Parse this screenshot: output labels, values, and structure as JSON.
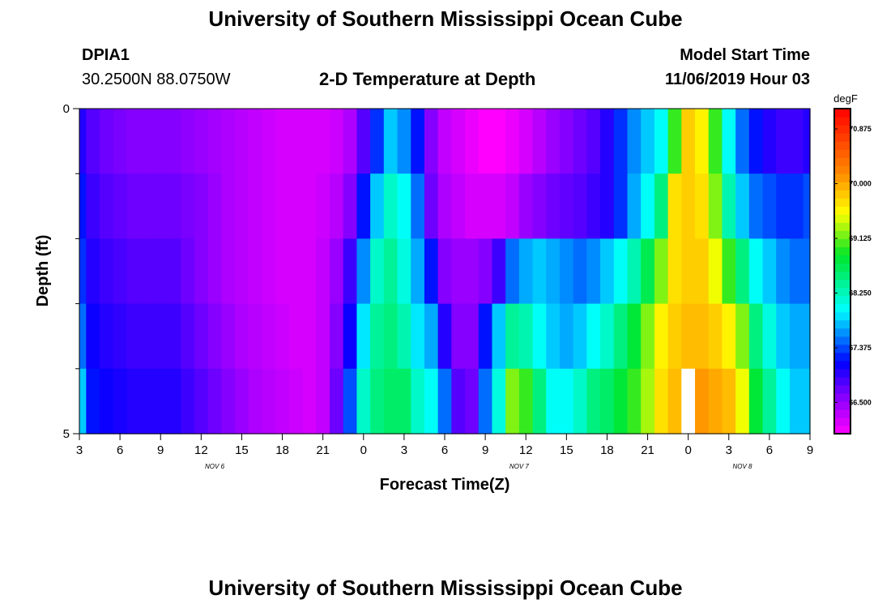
{
  "header": {
    "title": "University of Southern Mississippi Ocean Cube",
    "station": "DPIA1",
    "location": "30.2500N 88.0750W",
    "subtitle": "2-D Temperature at Depth",
    "model_label": "Model Start Time",
    "model_time": "11/06/2019 Hour 03"
  },
  "footer": {
    "title": "University of Southern Mississippi Ocean Cube"
  },
  "chart_data": {
    "type": "heatmap",
    "title": "2-D Temperature at Depth",
    "xlabel": "Forecast Time(Z)",
    "ylabel": "Depth (ft)",
    "x_start_hour": 3,
    "x_end_hour": 57,
    "x_ticks": [
      {
        "hour": 3,
        "label": "3"
      },
      {
        "hour": 6,
        "label": "6"
      },
      {
        "hour": 9,
        "label": "9"
      },
      {
        "hour": 12,
        "label": "12"
      },
      {
        "hour": 15,
        "label": "15"
      },
      {
        "hour": 18,
        "label": "18"
      },
      {
        "hour": 21,
        "label": "21"
      },
      {
        "hour": 24,
        "label": "0"
      },
      {
        "hour": 27,
        "label": "3"
      },
      {
        "hour": 30,
        "label": "6"
      },
      {
        "hour": 33,
        "label": "9"
      },
      {
        "hour": 36,
        "label": "12"
      },
      {
        "hour": 39,
        "label": "15"
      },
      {
        "hour": 42,
        "label": "18"
      },
      {
        "hour": 45,
        "label": "21"
      },
      {
        "hour": 48,
        "label": "0"
      },
      {
        "hour": 51,
        "label": "3"
      },
      {
        "hour": 54,
        "label": "6"
      },
      {
        "hour": 57,
        "label": "9"
      }
    ],
    "date_labels": [
      {
        "hour": 13,
        "label": "NOV 6"
      },
      {
        "hour": 35.5,
        "label": "NOV 7"
      },
      {
        "hour": 52,
        "label": "NOV 8"
      }
    ],
    "ylim": [
      0,
      5
    ],
    "y_ticks": [
      {
        "depth": 0,
        "label": "0"
      },
      {
        "depth": 5,
        "label": "5"
      }
    ],
    "y_minor_ticks": [
      1,
      2,
      3,
      4
    ],
    "layers": 5,
    "colorbar": {
      "unit": "degF",
      "min": 66.0,
      "max": 71.2,
      "tick_values": [
        66.5,
        67.375,
        68.25,
        69.125,
        70.0,
        70.875
      ],
      "tick_labels": [
        "66.500",
        "67.375",
        "68.250",
        "69.125",
        "70.000",
        "70.875"
      ]
    },
    "column_hours": [
      3,
      4,
      5,
      6,
      7,
      8,
      9,
      10,
      11,
      12,
      13,
      14,
      15,
      16,
      17,
      18,
      19,
      20,
      21,
      22,
      23,
      24,
      25,
      26,
      27,
      28,
      29,
      30,
      31,
      32,
      33,
      34,
      35,
      36,
      37,
      38,
      39,
      40,
      41,
      42,
      43,
      44,
      45,
      46,
      47,
      48,
      49,
      50,
      51,
      52,
      53,
      54,
      55,
      56,
      57
    ],
    "temperature_layers": [
      [
        67.0,
        66.8,
        66.7,
        66.65,
        66.6,
        66.6,
        66.6,
        66.6,
        66.55,
        66.5,
        66.45,
        66.4,
        66.35,
        66.3,
        66.25,
        66.2,
        66.2,
        66.2,
        66.2,
        66.25,
        66.4,
        66.8,
        67.3,
        67.8,
        67.6,
        67.2,
        66.6,
        66.3,
        66.2,
        66.1,
        66.0,
        66.0,
        66.1,
        66.2,
        66.35,
        66.5,
        66.6,
        66.7,
        66.8,
        67.0,
        67.3,
        67.6,
        67.8,
        68.0,
        69.0,
        69.8,
        69.6,
        69.0,
        68.0,
        67.5,
        67.2,
        67.0,
        66.9,
        66.9,
        67.0
      ],
      [
        67.2,
        66.9,
        66.8,
        66.75,
        66.7,
        66.7,
        66.7,
        66.7,
        66.65,
        66.6,
        66.5,
        66.4,
        66.35,
        66.3,
        66.25,
        66.2,
        66.2,
        66.2,
        66.25,
        66.35,
        66.6,
        67.2,
        67.8,
        68.2,
        68.0,
        67.5,
        66.7,
        66.4,
        66.3,
        66.2,
        66.2,
        66.2,
        66.3,
        66.5,
        66.6,
        66.7,
        66.75,
        66.8,
        66.9,
        67.0,
        67.3,
        67.7,
        68.0,
        68.5,
        69.7,
        69.8,
        69.7,
        69.2,
        68.3,
        67.8,
        67.5,
        67.4,
        67.3,
        67.3,
        67.4
      ],
      [
        67.3,
        67.0,
        66.9,
        66.85,
        66.8,
        66.8,
        66.8,
        66.8,
        66.7,
        66.6,
        66.5,
        66.4,
        66.35,
        66.3,
        66.25,
        66.2,
        66.2,
        66.2,
        66.3,
        66.5,
        66.9,
        67.6,
        68.2,
        68.4,
        68.1,
        67.7,
        67.2,
        66.6,
        66.5,
        66.5,
        66.6,
        66.9,
        67.5,
        67.7,
        67.8,
        67.7,
        67.6,
        67.5,
        67.6,
        67.8,
        68.0,
        68.3,
        68.7,
        69.2,
        69.7,
        69.8,
        69.8,
        69.5,
        69.0,
        68.5,
        68.0,
        67.8,
        67.6,
        67.5,
        67.5
      ],
      [
        67.5,
        67.1,
        67.0,
        66.95,
        66.9,
        66.9,
        66.9,
        66.9,
        66.8,
        66.7,
        66.6,
        66.5,
        66.4,
        66.35,
        66.3,
        66.25,
        66.2,
        66.2,
        66.3,
        66.6,
        67.1,
        67.9,
        68.4,
        68.5,
        68.3,
        67.9,
        67.7,
        67.0,
        66.6,
        66.6,
        67.2,
        67.8,
        68.4,
        68.3,
        68.0,
        67.8,
        67.7,
        67.8,
        68.0,
        68.2,
        68.5,
        68.8,
        69.2,
        69.6,
        69.8,
        69.9,
        69.9,
        69.8,
        69.6,
        69.2,
        68.5,
        68.1,
        67.8,
        67.7,
        67.7
      ],
      [
        67.8,
        67.2,
        67.1,
        67.05,
        67.0,
        67.0,
        67.0,
        67.0,
        66.9,
        66.8,
        66.7,
        66.6,
        66.5,
        66.4,
        66.35,
        66.3,
        66.25,
        66.2,
        66.3,
        66.7,
        67.4,
        68.2,
        68.5,
        68.6,
        68.6,
        68.2,
        68.0,
        67.5,
        66.8,
        66.7,
        67.5,
        68.1,
        69.2,
        69.0,
        68.5,
        68.0,
        68.0,
        68.2,
        68.5,
        68.6,
        68.8,
        69.0,
        69.3,
        69.7,
        69.9,
        70.0,
        70.1,
        70.0,
        69.9,
        69.5,
        68.8,
        68.4,
        68.0,
        67.8,
        67.8
      ]
    ],
    "missing_cells": [
      {
        "layer": 4,
        "hour": 48
      }
    ]
  }
}
